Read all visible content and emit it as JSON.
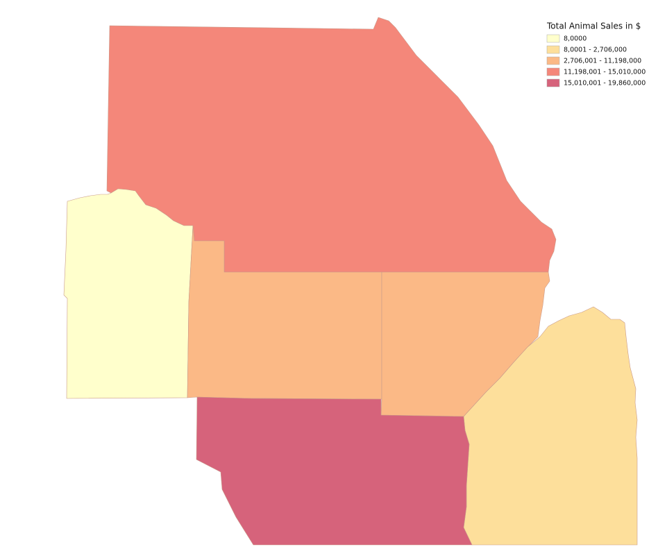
{
  "legend": {
    "title": "Total Animal Sales in $",
    "items": [
      {
        "label": "8,0000",
        "color": "#ffffcc"
      },
      {
        "label": "8,0001 - 2,706,000",
        "color": "#fddf9b"
      },
      {
        "label": "2,706,001 - 11,198,000",
        "color": "#fbb986"
      },
      {
        "label": "11,198,001 - 15,010,000",
        "color": "#f4877a"
      },
      {
        "label": "15,010,001 - 19,860,000",
        "color": "#d6637b"
      }
    ]
  }
}
